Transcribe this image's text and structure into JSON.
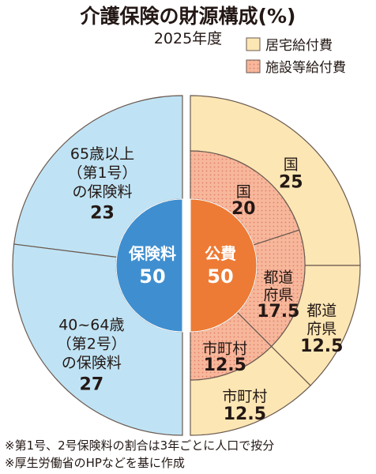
{
  "chart_data": {
    "type": "pie",
    "title": "介護保険の財源構成(%)",
    "subtitle": "2025年度",
    "legend": [
      "居宅給付費",
      "施設等給付費"
    ],
    "colors": {
      "insurance": "#bfe3f4",
      "home": "#fce6b4",
      "facility": "#f6b69a",
      "center_insurance": "#3f8fd0",
      "center_public": "#ed7b35"
    },
    "center": {
      "insurance": {
        "label": "保険料",
        "value": 50
      },
      "public": {
        "label": "公費",
        "value": 50
      }
    },
    "insurance": [
      {
        "label_lines": [
          "65歳以上",
          "（第1号）",
          "の保険料"
        ],
        "value": 23
      },
      {
        "label_lines": [
          "40~64歳",
          "（第2号）",
          "の保険料"
        ],
        "value": 27
      }
    ],
    "home_care": [
      {
        "label_lines": [
          "国"
        ],
        "value": 25
      },
      {
        "label_lines": [
          "都道",
          "府県"
        ],
        "value": 12.5
      },
      {
        "label_lines": [
          "市町村"
        ],
        "value": 12.5
      }
    ],
    "facility_care": [
      {
        "label_lines": [
          "国"
        ],
        "value": 20
      },
      {
        "label_lines": [
          "都道",
          "府県"
        ],
        "value": 17.5
      },
      {
        "label_lines": [
          "市町村"
        ],
        "value": 12.5
      }
    ],
    "notes": [
      "※第1号、2号保険料の割合は3年ごとに人口で按分",
      "※厚生労働省のHPなどを基に作成"
    ]
  }
}
